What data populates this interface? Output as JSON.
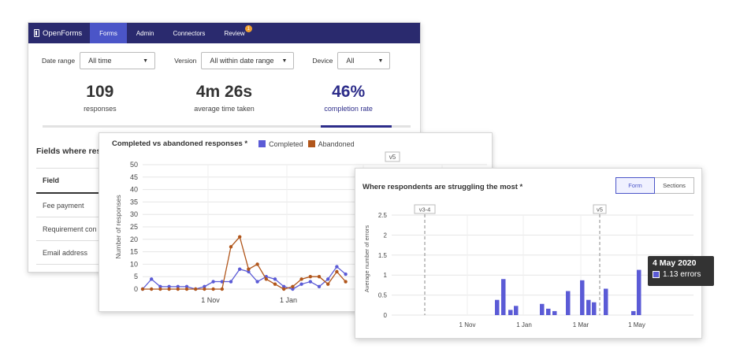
{
  "colors": {
    "nav_bg": "#2a2a6e",
    "nav_active": "#4b55c8",
    "accent": "#2d2d8a",
    "completed": "#5b5bd6",
    "abandoned": "#b1561b",
    "badge": "#f0a030"
  },
  "navbar": {
    "brand": "OpenForms",
    "items": [
      {
        "label": "Forms",
        "active": true
      },
      {
        "label": "Admin",
        "active": false
      },
      {
        "label": "Connectors",
        "active": false
      },
      {
        "label": "Review",
        "active": false,
        "badge": "1"
      }
    ]
  },
  "filters": {
    "date_range": {
      "label": "Date range",
      "value": "All time"
    },
    "version": {
      "label": "Version",
      "value": "All within date range"
    },
    "device": {
      "label": "Device",
      "value": "All"
    }
  },
  "stats": [
    {
      "value": "109",
      "label": "responses"
    },
    {
      "value": "4m 26s",
      "label": "average time taken"
    },
    {
      "value": "46%",
      "label": "completion rate",
      "active": true
    }
  ],
  "fields": {
    "title": "Fields where resp",
    "header": "Field",
    "rows": [
      "Fee payment",
      "Requirement con",
      "Email address"
    ]
  },
  "chart1": {
    "title": "Completed vs abandoned responses *",
    "version_marker": "v5",
    "chart_data": {
      "type": "line",
      "ylabel": "Number of responses",
      "ylim": [
        0,
        50
      ],
      "yticks": [
        0,
        5,
        10,
        15,
        20,
        25,
        30,
        35,
        40,
        45,
        50
      ],
      "xtick_labels": [
        "1 Nov",
        "1 Jan"
      ],
      "series": [
        {
          "name": "Completed",
          "values": [
            0,
            4,
            1,
            1,
            1,
            1,
            0,
            1,
            3,
            3,
            3,
            8,
            7,
            3,
            5,
            4,
            1,
            0,
            2,
            3,
            1,
            4,
            9,
            6
          ]
        },
        {
          "name": "Abandoned",
          "values": [
            0,
            0,
            0,
            0,
            0,
            0,
            0,
            0,
            0,
            0,
            17,
            21,
            8,
            10,
            4,
            2,
            0,
            1,
            4,
            5,
            5,
            2,
            7,
            3
          ]
        }
      ]
    }
  },
  "chart2": {
    "title": "Where respondents are struggling the most *",
    "toggle": [
      "Form",
      "Sections"
    ],
    "markers": [
      "v3-4",
      "v5"
    ],
    "chart_data": {
      "type": "bar",
      "ylabel": "Average number of errors",
      "ylim": [
        0,
        2.5
      ],
      "yticks": [
        0,
        0.5,
        1,
        1.5,
        2,
        2.5
      ],
      "xtick_labels": [
        "1 Nov",
        "1 Jan",
        "1 Mar",
        "1 May"
      ],
      "values": [
        0.38,
        0.9,
        0.13,
        0.23,
        0.28,
        0.16,
        0.1,
        0.6,
        0.87,
        0.38,
        0.32,
        0.66,
        0.1,
        1.13
      ]
    }
  },
  "tooltip": {
    "date": "4 May 2020",
    "value": "1.13 errors"
  }
}
